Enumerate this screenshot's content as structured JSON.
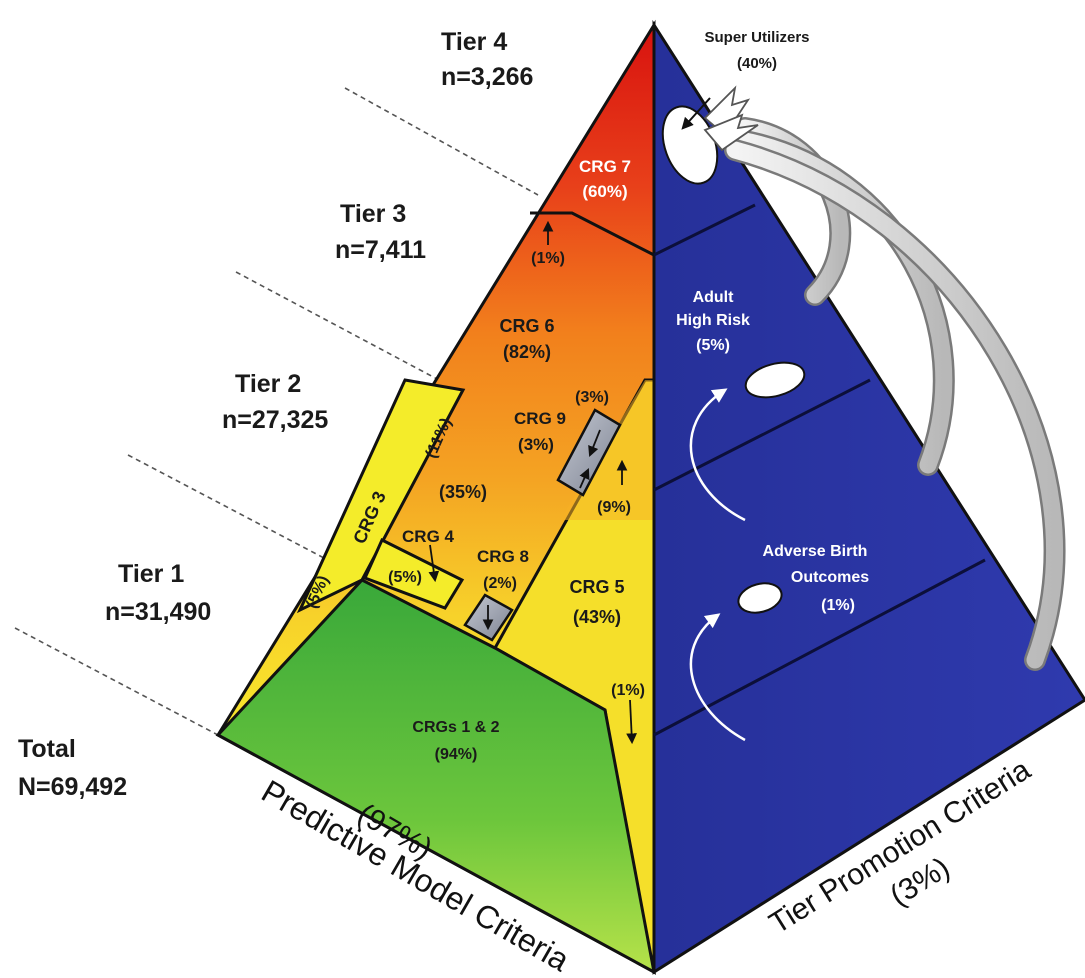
{
  "tiers": [
    {
      "name": "Tier 4",
      "n": "n=3,266"
    },
    {
      "name": "Tier 3",
      "n": "n=7,411"
    },
    {
      "name": "Tier 2",
      "n": "n=27,325"
    },
    {
      "name": "Tier 1",
      "n": "n=31,490"
    },
    {
      "name": "Total",
      "n": "N=69,492"
    }
  ],
  "segments": {
    "crg7": {
      "name": "CRG 7",
      "pct": "(60%)"
    },
    "crg6": {
      "name": "CRG 6",
      "pct": "(82%)"
    },
    "crg5": {
      "name": "CRG 5",
      "pct": "(43%)"
    },
    "crg4": {
      "name": "CRG 4",
      "pct": "(5%)"
    },
    "crg3": {
      "name": "CRG 3",
      "pct_top": "(11%)",
      "pct_bottom": "(5%)"
    },
    "crg8": {
      "name": "CRG 8",
      "pct": "(2%)"
    },
    "crg9": {
      "name": "CRG 9",
      "pct": "(3%)"
    },
    "crg12": {
      "name": "CRGs 1 & 2",
      "pct": "(94%)"
    }
  },
  "flows": {
    "p1_top": "(1%)",
    "p35": "(35%)",
    "p3": "(3%)",
    "p9": "(9%)",
    "p1_bottom": "(1%)"
  },
  "right_face": {
    "super_utilizers": {
      "name": "Super Utilizers",
      "pct": "(40%)"
    },
    "adult_high_risk": {
      "line1": "Adult",
      "line2": "High Risk",
      "pct": "(5%)"
    },
    "adverse_birth": {
      "line1": "Adverse Birth",
      "line2": "Outcomes",
      "pct": "(1%)"
    }
  },
  "face_labels": {
    "left_title": "Predictive Model Criteria",
    "left_pct": "(97%)",
    "right_title": "Tier Promotion Criteria",
    "right_pct": "(3%)"
  },
  "colors": {
    "blue": "#2c35a0",
    "green": "#4bb53a",
    "yellow": "#f2ea28",
    "orange": "#f07a1a",
    "red": "#de2a1a",
    "gray_box": "#9aa0ad"
  }
}
